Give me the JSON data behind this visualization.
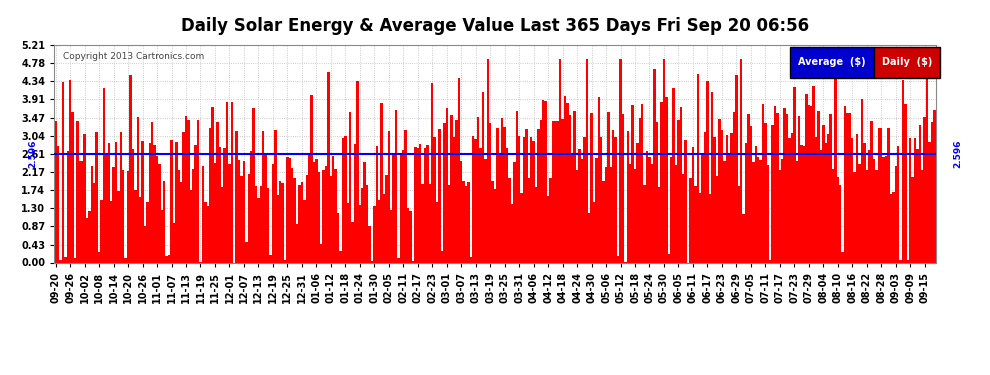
{
  "title": "Daily Solar Energy & Average Value Last 365 Days Fri Sep 20 06:56",
  "copyright": "Copyright 2013 Cartronics.com",
  "average_value": 2.596,
  "ymin": 0.0,
  "ymax": 5.21,
  "yticks": [
    0.0,
    0.43,
    0.87,
    1.3,
    1.74,
    2.17,
    2.61,
    3.04,
    3.47,
    3.91,
    4.34,
    4.78,
    5.21
  ],
  "bar_color": "#ff0000",
  "avg_line_color": "#0000ff",
  "background_color": "#ffffff",
  "grid_color": "#bbbbbb",
  "legend_avg_bg": "#0000cc",
  "legend_daily_bg": "#cc0000",
  "legend_text_color": "#ffffff",
  "title_fontsize": 12,
  "tick_fontsize": 7,
  "num_bars": 365,
  "seed": 42,
  "date_labels": [
    "09-20",
    "09-26",
    "10-02",
    "10-08",
    "10-14",
    "10-20",
    "10-26",
    "11-01",
    "11-07",
    "11-13",
    "11-19",
    "11-25",
    "12-01",
    "12-07",
    "12-13",
    "12-19",
    "12-25",
    "12-31",
    "01-06",
    "01-12",
    "01-18",
    "01-24",
    "01-30",
    "02-05",
    "02-11",
    "02-17",
    "02-23",
    "03-01",
    "03-07",
    "03-13",
    "03-19",
    "03-25",
    "03-31",
    "04-06",
    "04-12",
    "04-18",
    "04-24",
    "04-30",
    "05-06",
    "05-12",
    "05-18",
    "05-24",
    "05-30",
    "06-05",
    "06-11",
    "06-17",
    "06-23",
    "06-29",
    "07-05",
    "07-11",
    "07-17",
    "07-23",
    "07-29",
    "08-04",
    "08-10",
    "08-16",
    "08-22",
    "08-28",
    "09-03",
    "09-09",
    "09-15"
  ],
  "label_step": 6
}
